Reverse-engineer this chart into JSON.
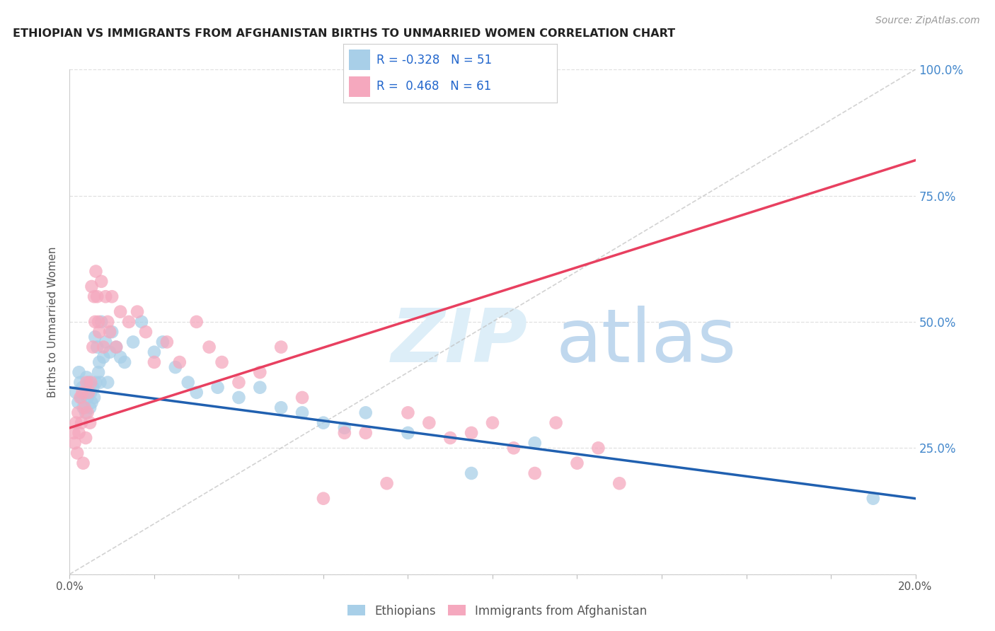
{
  "title": "ETHIOPIAN VS IMMIGRANTS FROM AFGHANISTAN BIRTHS TO UNMARRIED WOMEN CORRELATION CHART",
  "source": "Source: ZipAtlas.com",
  "ylabel": "Births to Unmarried Women",
  "xlim": [
    0.0,
    20.0
  ],
  "ylim": [
    0.0,
    100.0
  ],
  "blue_color": "#a8cfe8",
  "pink_color": "#f5a8be",
  "blue_line_color": "#2060b0",
  "pink_line_color": "#e84060",
  "right_tick_color": "#4488cc",
  "grid_color": "#e0e0e0",
  "title_color": "#222222",
  "legend_text_color": "#2266cc",
  "legend_blue_r": "-0.328",
  "legend_blue_n": "51",
  "legend_pink_r": " 0.468",
  "legend_pink_n": "61",
  "legend_blue_label": "Ethiopians",
  "legend_pink_label": "Immigrants from Afghanistan",
  "blue_trend_x0": 0.0,
  "blue_trend_y0": 37.0,
  "blue_trend_x1": 20.0,
  "blue_trend_y1": 15.0,
  "pink_trend_x0": 0.0,
  "pink_trend_y0": 29.0,
  "pink_trend_x1": 20.0,
  "pink_trend_y1": 82.0,
  "blue_scatter_x": [
    0.15,
    0.2,
    0.22,
    0.25,
    0.28,
    0.3,
    0.32,
    0.35,
    0.38,
    0.4,
    0.42,
    0.45,
    0.48,
    0.5,
    0.52,
    0.55,
    0.58,
    0.6,
    0.62,
    0.65,
    0.68,
    0.7,
    0.72,
    0.75,
    0.8,
    0.85,
    0.9,
    0.95,
    1.0,
    1.1,
    1.2,
    1.3,
    1.5,
    1.7,
    2.0,
    2.2,
    2.5,
    2.8,
    3.0,
    3.5,
    4.0,
    4.5,
    5.0,
    5.5,
    6.0,
    6.5,
    7.0,
    8.0,
    9.5,
    11.0,
    19.0
  ],
  "blue_scatter_y": [
    36,
    34,
    40,
    38,
    35,
    37,
    33,
    36,
    32,
    39,
    35,
    38,
    33,
    36,
    34,
    37,
    35,
    47,
    38,
    45,
    40,
    42,
    38,
    50,
    43,
    46,
    38,
    44,
    48,
    45,
    43,
    42,
    46,
    50,
    44,
    46,
    41,
    38,
    36,
    37,
    35,
    37,
    33,
    32,
    30,
    29,
    32,
    28,
    20,
    26,
    15
  ],
  "pink_scatter_x": [
    0.1,
    0.12,
    0.15,
    0.18,
    0.2,
    0.22,
    0.25,
    0.28,
    0.3,
    0.32,
    0.35,
    0.38,
    0.4,
    0.42,
    0.45,
    0.48,
    0.5,
    0.52,
    0.55,
    0.58,
    0.6,
    0.62,
    0.65,
    0.68,
    0.7,
    0.75,
    0.8,
    0.85,
    0.9,
    0.95,
    1.0,
    1.1,
    1.2,
    1.4,
    1.6,
    1.8,
    2.0,
    2.3,
    2.6,
    3.0,
    3.3,
    3.6,
    4.0,
    4.5,
    5.0,
    5.5,
    6.0,
    6.5,
    7.0,
    7.5,
    8.0,
    8.5,
    9.0,
    9.5,
    10.0,
    10.5,
    11.0,
    11.5,
    12.0,
    12.5,
    13.0
  ],
  "pink_scatter_y": [
    28,
    26,
    30,
    24,
    32,
    28,
    35,
    30,
    36,
    22,
    33,
    27,
    38,
    32,
    36,
    30,
    38,
    57,
    45,
    55,
    50,
    60,
    55,
    50,
    48,
    58,
    45,
    55,
    50,
    48,
    55,
    45,
    52,
    50,
    52,
    48,
    42,
    46,
    42,
    50,
    45,
    42,
    38,
    40,
    45,
    35,
    15,
    28,
    28,
    18,
    32,
    30,
    27,
    28,
    30,
    25,
    20,
    30,
    22,
    25,
    18
  ]
}
